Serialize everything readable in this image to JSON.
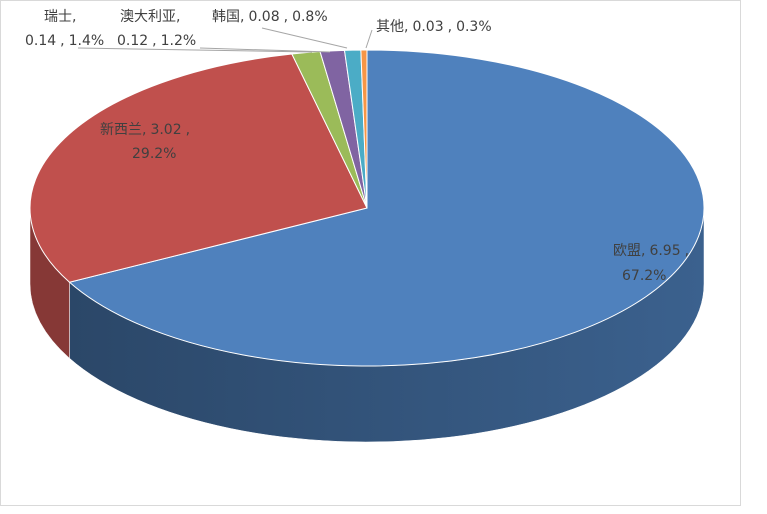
{
  "chart_data": {
    "type": "pie3d",
    "categories": [
      "欧盟",
      "新西兰",
      "瑞士",
      "澳大利亚",
      "韩国",
      "其他"
    ],
    "values": [
      6.95,
      3.02,
      0.14,
      0.12,
      0.08,
      0.03
    ],
    "percent_labels": [
      "67.2%",
      "29.2%",
      "1.4%",
      "1.2%",
      "0.8%",
      "0.3%"
    ],
    "label_separator": ",",
    "colors": [
      "#4f81bd",
      "#c0504d",
      "#9bbb59",
      "#8064a2",
      "#4bacc6",
      "#f79646"
    ]
  }
}
